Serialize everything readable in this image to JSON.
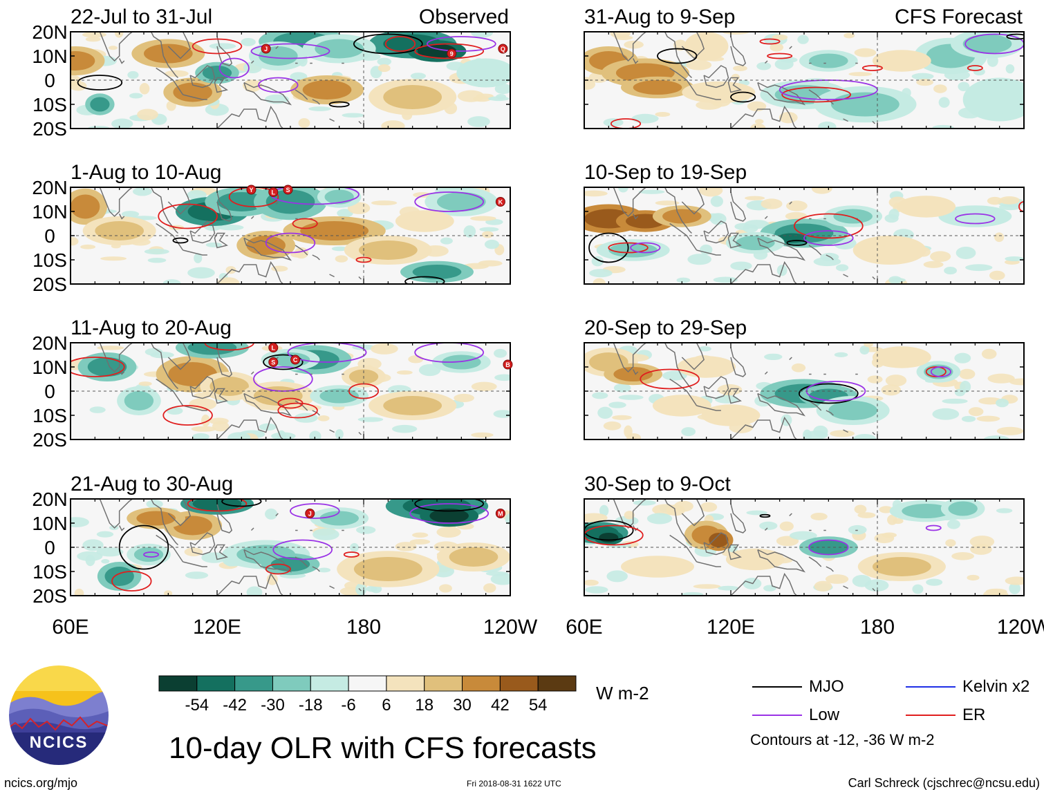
{
  "page": {
    "title": "10-day OLR with CFS forecasts",
    "units": "W m-2",
    "footer": {
      "website": "ncics.org/mjo",
      "timestamp": "Fri 2018-08-31 1622 UTC",
      "credit": "Carl Schreck (cjschrec@ncsu.edu)"
    },
    "logo_text": "NCICS"
  },
  "columns": [
    {
      "tag": "Observed"
    },
    {
      "tag": "CFS Forecast"
    }
  ],
  "panels": [
    {
      "id": "obs-1",
      "column": 0,
      "row": 0,
      "title": "22-Jul to 31-Jul"
    },
    {
      "id": "obs-2",
      "column": 0,
      "row": 1,
      "title": "1-Aug to 10-Aug"
    },
    {
      "id": "obs-3",
      "column": 0,
      "row": 2,
      "title": "11-Aug to 20-Aug"
    },
    {
      "id": "obs-4",
      "column": 0,
      "row": 3,
      "title": "21-Aug to 30-Aug"
    },
    {
      "id": "fc-1",
      "column": 1,
      "row": 0,
      "title": "31-Aug to 9-Sep"
    },
    {
      "id": "fc-2",
      "column": 1,
      "row": 1,
      "title": "10-Sep to 19-Sep"
    },
    {
      "id": "fc-3",
      "column": 1,
      "row": 2,
      "title": "20-Sep to 29-Sep"
    },
    {
      "id": "fc-4",
      "column": 1,
      "row": 3,
      "title": "30-Sep to 9-Oct"
    }
  ],
  "map_axes": {
    "lat_ticks": [
      "20N",
      "10N",
      "0",
      "10S",
      "20S"
    ],
    "lat_range": [
      -20,
      20
    ],
    "lon_ticks": [
      {
        "lon": 60,
        "label": "60E"
      },
      {
        "lon": 120,
        "label": "120E"
      },
      {
        "lon": 180,
        "label": "180"
      },
      {
        "lon": 240,
        "label": "120W"
      }
    ],
    "lon_range": [
      60,
      240
    ]
  },
  "colorbar": {
    "labels": [
      "-54",
      "-42",
      "-30",
      "-18",
      "-6",
      "6",
      "18",
      "30",
      "42",
      "54"
    ],
    "colors": [
      "#0b3f32",
      "#14705f",
      "#37998a",
      "#7fcbbd",
      "#c5ebe3",
      "#f6f6f6",
      "#f4e3bd",
      "#e0c07c",
      "#c88a3a",
      "#995a1c",
      "#5b3a12"
    ]
  },
  "contour_colors": {
    "mjo": "#000000",
    "low": "#9a32e6",
    "kelvin": "#1e2ee6",
    "er": "#e01e1e"
  },
  "legend": [
    {
      "key": "mjo",
      "label": "MJO"
    },
    {
      "key": "kelvin",
      "label": "Kelvin x2"
    },
    {
      "key": "low",
      "label": "Low"
    },
    {
      "key": "er",
      "label": "ER"
    }
  ],
  "legend_note": "Contours at -12, -36 W m-2",
  "storm_markers": [
    {
      "panel": "obs-1",
      "letter": "J",
      "lon": 140,
      "lat": 13
    },
    {
      "panel": "obs-1",
      "letter": "9",
      "lon": 216,
      "lat": 11
    },
    {
      "panel": "obs-1",
      "letter": "Q",
      "lon": 237,
      "lat": 13
    },
    {
      "panel": "obs-2",
      "letter": "Y",
      "lon": 134,
      "lat": 19
    },
    {
      "panel": "obs-2",
      "letter": "L",
      "lon": 143,
      "lat": 18
    },
    {
      "panel": "obs-2",
      "letter": "S",
      "lon": 149,
      "lat": 19
    },
    {
      "panel": "obs-2",
      "letter": "K",
      "lon": 236,
      "lat": 14
    },
    {
      "panel": "obs-3",
      "letter": "L",
      "lon": 143,
      "lat": 18
    },
    {
      "panel": "obs-3",
      "letter": "S",
      "lon": 143,
      "lat": 12
    },
    {
      "panel": "obs-3",
      "letter": "C",
      "lon": 152,
      "lat": 13
    },
    {
      "panel": "obs-3",
      "letter": "B",
      "lon": 239,
      "lat": 11
    },
    {
      "panel": "obs-4",
      "letter": "J",
      "lon": 158,
      "lat": 14
    },
    {
      "panel": "obs-4",
      "letter": "M",
      "lon": 236,
      "lat": 14
    }
  ]
}
